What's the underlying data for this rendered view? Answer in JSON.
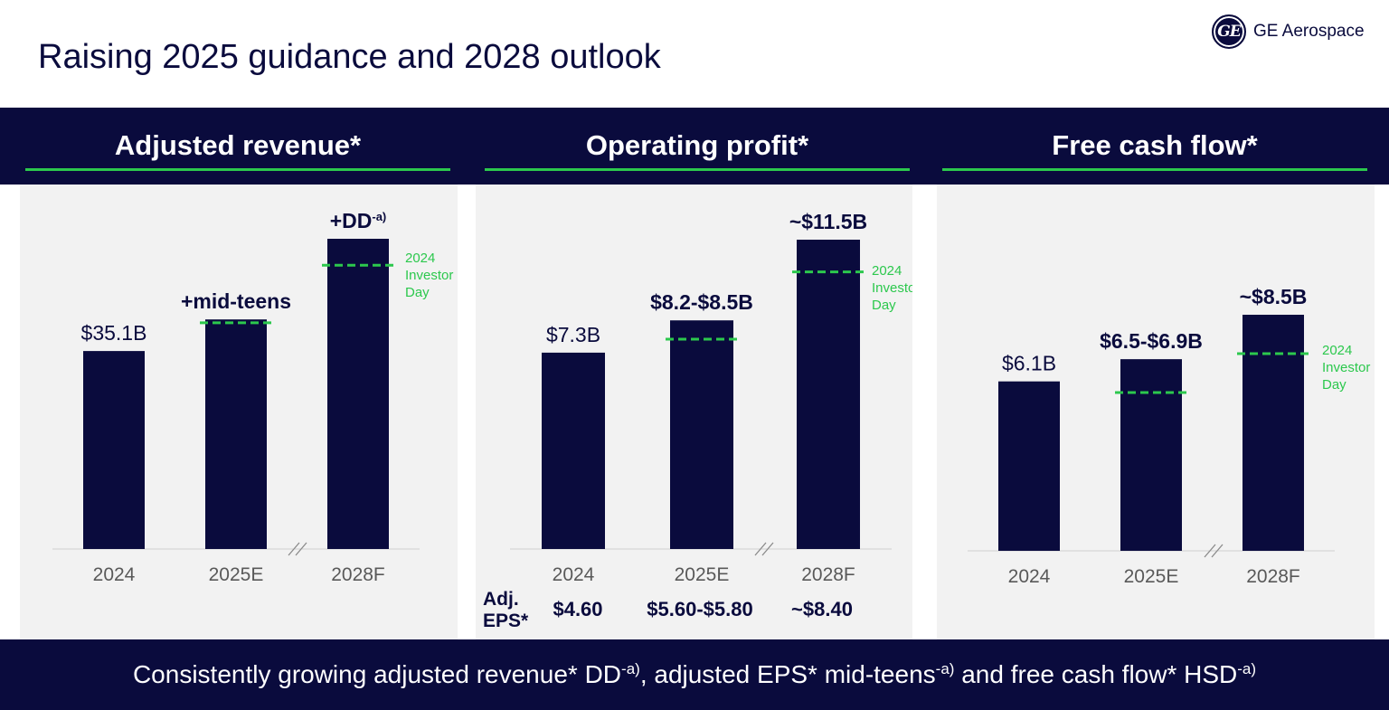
{
  "page": {
    "title": "Raising 2025 guidance and 2028 outlook"
  },
  "brand": {
    "logo_mark": "GE",
    "logo_text": "GE Aerospace",
    "colors": {
      "navy": "#0a0b3d",
      "green": "#2cc84d",
      "panel": "#f2f2f2",
      "axis_label": "#595959"
    }
  },
  "sections": [
    {
      "title": "Adjusted revenue*"
    },
    {
      "title": "Operating profit*"
    },
    {
      "title": "Free cash flow*"
    }
  ],
  "chart_data": [
    {
      "type": "bar",
      "title": "Adjusted revenue*",
      "categories": [
        "2024",
        "2025E",
        "2028F"
      ],
      "values": [
        35.1,
        40.7,
        55.0
      ],
      "unit": "$B",
      "data_labels": [
        {
          "text": "$35.1B",
          "bold": false
        },
        {
          "text": "+mid-teens",
          "bold": true
        },
        {
          "text": "+DD",
          "sup": "-a)",
          "bold": true
        }
      ],
      "investor_day_reference": [
        null,
        40.1,
        50.3
      ],
      "annotation": [
        "2024",
        "Investor",
        "Day"
      ],
      "axis_break_between": [
        "2025E",
        "2028F"
      ],
      "grid": false
    },
    {
      "type": "bar",
      "title": "Operating profit*",
      "categories": [
        "2024",
        "2025E",
        "2028F"
      ],
      "values": [
        7.3,
        8.5,
        11.5
      ],
      "unit": "$B",
      "data_labels": [
        {
          "text": "$7.3B",
          "bold": false
        },
        {
          "text": "$8.2-$8.5B",
          "bold": true
        },
        {
          "text": "~$11.5B",
          "bold": true
        }
      ],
      "investor_day_reference": [
        null,
        7.8,
        10.3
      ],
      "annotation": [
        "2024",
        "Investor",
        "Day"
      ],
      "axis_break_between": [
        "2025E",
        "2028F"
      ],
      "grid": false,
      "adjusted_eps": {
        "label": [
          "Adj.",
          "EPS*"
        ],
        "values": [
          "$4.60",
          "$5.60-$5.80",
          "~$8.40"
        ]
      }
    },
    {
      "type": "bar",
      "title": "Free cash flow*",
      "categories": [
        "2024",
        "2025E",
        "2028F"
      ],
      "values": [
        6.1,
        6.9,
        8.5
      ],
      "unit": "$B",
      "data_labels": [
        {
          "text": "$6.1B",
          "bold": false
        },
        {
          "text": "$6.5-$6.9B",
          "bold": true
        },
        {
          "text": "~$8.5B",
          "bold": true
        }
      ],
      "investor_day_reference": [
        null,
        5.7,
        7.1
      ],
      "annotation": [
        "2024",
        "Investor",
        "Day"
      ],
      "axis_break_between": [
        "2025E",
        "2028F"
      ],
      "grid": false
    }
  ],
  "footer": {
    "parts": [
      {
        "text": "Consistently growing adjusted revenue* DD"
      },
      {
        "sup": "-a)"
      },
      {
        "text": ", adjusted EPS* mid-teens"
      },
      {
        "sup": "-a)"
      },
      {
        "text": " and free cash flow* HSD"
      },
      {
        "sup": "-a)"
      }
    ]
  }
}
